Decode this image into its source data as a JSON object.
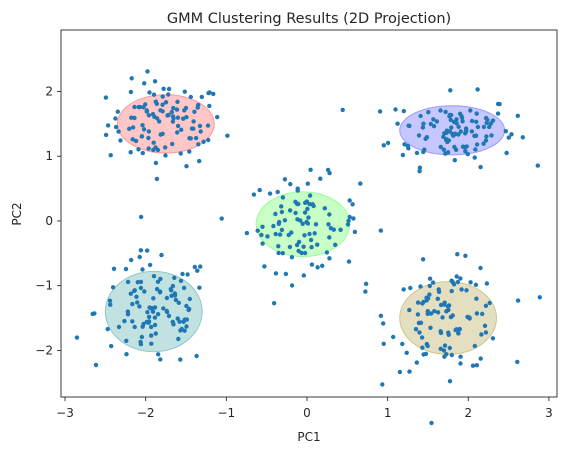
{
  "chart_data": {
    "type": "scatter",
    "title": "GMM Clustering Results (2D Projection)",
    "xlabel": "PC1",
    "ylabel": "PC2",
    "xlim": [
      -3.05,
      3.1
    ],
    "ylim": [
      -2.72,
      2.95
    ],
    "xticks": [
      -3,
      -2,
      -1,
      0,
      1,
      2,
      3
    ],
    "yticks": [
      -2,
      -1,
      0,
      1,
      2
    ],
    "xtick_labels": [
      "−3",
      "−2",
      "−1",
      "0",
      "1",
      "2",
      "3"
    ],
    "ytick_labels": [
      "−2",
      "−1",
      "0",
      "1",
      "2"
    ],
    "grid": false,
    "point_color": "#1f77b4",
    "clusters": [
      {
        "center": [
          -1.75,
          1.5
        ],
        "rx": 0.6,
        "ry": 0.45,
        "color": "#ff9999",
        "count": 110
      },
      {
        "center": [
          1.8,
          1.4
        ],
        "rx": 0.65,
        "ry": 0.38,
        "color": "#9999ff",
        "count": 110
      },
      {
        "center": [
          -0.05,
          -0.05
        ],
        "rx": 0.58,
        "ry": 0.5,
        "color": "#99ff99",
        "count": 100
      },
      {
        "center": [
          -1.9,
          -1.4
        ],
        "rx": 0.6,
        "ry": 0.62,
        "color": "#8fc9c9",
        "count": 110
      },
      {
        "center": [
          1.75,
          -1.5
        ],
        "rx": 0.6,
        "ry": 0.56,
        "color": "#cfc48f",
        "count": 110
      }
    ]
  }
}
